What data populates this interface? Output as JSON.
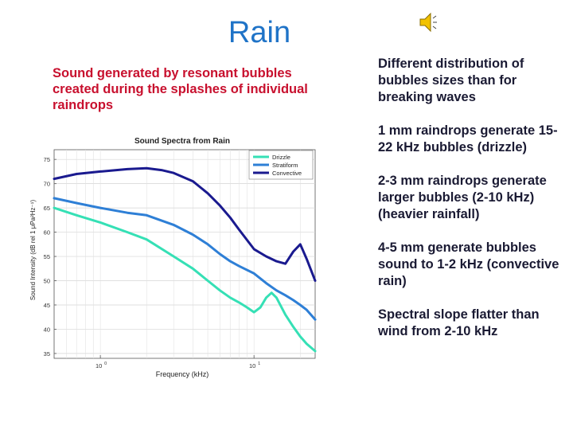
{
  "slide": {
    "title": "Rain",
    "caption": "Sound generated by resonant bubbles created during the splashes of individual raindrops",
    "bullets": [
      "Different distribution of bubbles sizes than for breaking waves",
      "1 mm raindrops generate 15-22 kHz bubbles (drizzle)",
      "2-3 mm raindrops generate larger bubbles (2-10 kHz)\n(heavier rainfall)",
      "4-5 mm generate bubbles sound to 1-2 kHz (convective rain)",
      "Spectral slope flatter than wind from 2-10 kHz"
    ],
    "speaker_icon": "speaker-icon"
  },
  "chart_data": {
    "type": "line",
    "title": "Sound Spectra from Rain",
    "xlabel": "Frequency (kHz)",
    "ylabel": "Sound Intensity (dB rel 1 μPa²Hz⁻¹)",
    "xscale": "log",
    "xlim": [
      0.5,
      25
    ],
    "ylim": [
      34,
      77
    ],
    "yticks": [
      35,
      40,
      45,
      50,
      55,
      60,
      65,
      70,
      75
    ],
    "xticks": [
      {
        "value": 1,
        "base": "10",
        "exp": "0"
      },
      {
        "value": 10,
        "base": "10",
        "exp": "1"
      }
    ],
    "grid": true,
    "legend": "top-right",
    "series": [
      {
        "name": "Drizzle",
        "color": "#35e0b5",
        "x": [
          0.5,
          0.7,
          1,
          1.5,
          2,
          3,
          4,
          5,
          6,
          7,
          8,
          9,
          10,
          11,
          12,
          13,
          14,
          16,
          18,
          20,
          22,
          25
        ],
        "y": [
          65,
          63.5,
          62,
          60,
          58.5,
          55,
          52.5,
          50,
          48,
          46.5,
          45.5,
          44.5,
          43.5,
          44.5,
          46.5,
          47.5,
          46.5,
          43,
          40.5,
          38.5,
          37,
          35.5
        ]
      },
      {
        "name": "Stratiform",
        "color": "#2e7fd6",
        "x": [
          0.5,
          0.7,
          1,
          1.5,
          2,
          3,
          4,
          5,
          6,
          7,
          8,
          10,
          12,
          14,
          16,
          18,
          20,
          22,
          25
        ],
        "y": [
          67,
          66,
          65,
          64,
          63.5,
          61.5,
          59.5,
          57.5,
          55.5,
          54,
          53,
          51.5,
          49.5,
          48,
          47,
          46,
          45,
          44,
          42
        ]
      },
      {
        "name": "Convective",
        "color": "#1a1a8f",
        "x": [
          0.5,
          0.7,
          1,
          1.5,
          2,
          2.5,
          3,
          4,
          5,
          6,
          7,
          8,
          10,
          12,
          14,
          16,
          18,
          20,
          22,
          25
        ],
        "y": [
          71,
          72,
          72.5,
          73,
          73.2,
          72.8,
          72.2,
          70.5,
          68,
          65.5,
          63,
          60.5,
          56.5,
          55,
          54,
          53.5,
          56,
          57.5,
          54.5,
          50
        ]
      }
    ]
  }
}
